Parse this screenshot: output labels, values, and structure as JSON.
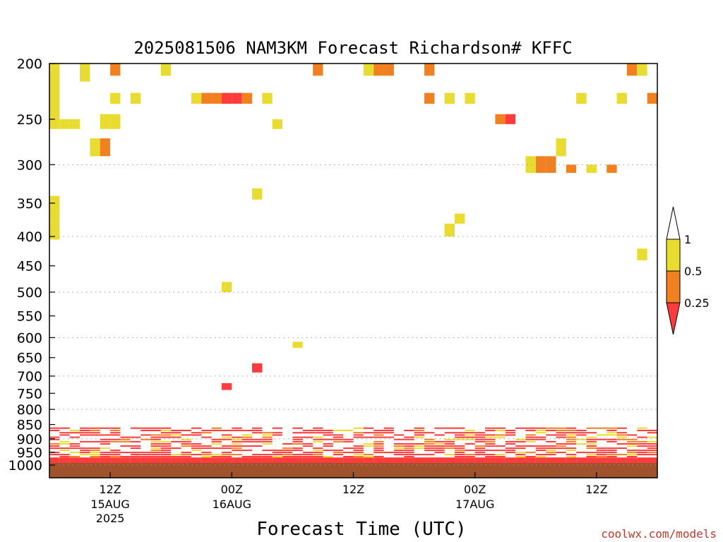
{
  "chart_data": {
    "type": "heatmap",
    "title": "2025081506 NAM3KM Forecast Richardson# KFFC",
    "xlabel": "Forecast Time (UTC)",
    "ylabel": "",
    "credit": "coolwx.com/models",
    "x_range_hours_since_2025081506": [
      0,
      60
    ],
    "y_axis": {
      "scale": "log-pressure",
      "range_hPa": [
        1000,
        200
      ],
      "reversed": true,
      "ticks": [
        200,
        250,
        300,
        350,
        400,
        450,
        500,
        550,
        600,
        650,
        700,
        750,
        800,
        850,
        900,
        950,
        1000
      ],
      "dotted_grid": [
        300,
        400,
        500,
        600,
        700,
        800,
        900,
        1000
      ]
    },
    "x_ticks": [
      {
        "label": "12Z",
        "date": "15AUG",
        "year": "2025"
      },
      {
        "label": "00Z",
        "date": "16AUG",
        "year": ""
      },
      {
        "label": "12Z",
        "date": "",
        "year": ""
      },
      {
        "label": "00Z",
        "date": "17AUG",
        "year": ""
      },
      {
        "label": "12Z",
        "date": "",
        "year": ""
      }
    ],
    "ground_color": "#a0522d",
    "legend": {
      "levels": [
        "1",
        "0.5",
        "0.25"
      ],
      "colors": {
        "low": "#ff3b3b",
        "mid": "#f08020",
        "high": "#e8dc30"
      },
      "placement": "right"
    },
    "cells": [
      [
        "2025-08-15T06",
        200,
        260,
        "high"
      ],
      [
        "2025-08-15T07",
        250,
        260,
        "high"
      ],
      [
        "2025-08-15T08",
        250,
        260,
        "high"
      ],
      [
        "2025-08-15T06",
        340,
        380,
        "high"
      ],
      [
        "2025-08-15T06",
        380,
        405,
        "high"
      ],
      [
        "2025-08-15T09",
        200,
        215,
        "high"
      ],
      [
        "2025-08-15T10",
        270,
        290,
        "high"
      ],
      [
        "2025-08-15T11",
        270,
        290,
        "mid"
      ],
      [
        "2025-08-15T11",
        245,
        260,
        "high"
      ],
      [
        "2025-08-15T12",
        245,
        260,
        "high"
      ],
      [
        "2025-08-15T12",
        200,
        210,
        "mid"
      ],
      [
        "2025-08-15T12",
        225,
        235,
        "high"
      ],
      [
        "2025-08-15T14",
        225,
        235,
        "high"
      ],
      [
        "2025-08-15T17",
        200,
        210,
        "high"
      ],
      [
        "2025-08-15T20",
        225,
        235,
        "high"
      ],
      [
        "2025-08-15T21",
        225,
        235,
        "mid"
      ],
      [
        "2025-08-15T22",
        225,
        235,
        "mid"
      ],
      [
        "2025-08-15T23",
        225,
        235,
        "low"
      ],
      [
        "2025-08-16T00",
        225,
        235,
        "low"
      ],
      [
        "2025-08-16T01",
        225,
        235,
        "mid"
      ],
      [
        "2025-08-16T03",
        225,
        235,
        "high"
      ],
      [
        "2025-08-16T04",
        250,
        260,
        "high"
      ],
      [
        "2025-08-16T02",
        330,
        345,
        "high"
      ],
      [
        "2025-08-15T23",
        480,
        500,
        "high"
      ],
      [
        "2025-08-16T08",
        200,
        210,
        "mid"
      ],
      [
        "2025-08-16T13",
        200,
        210,
        "high"
      ],
      [
        "2025-08-16T14",
        200,
        210,
        "mid"
      ],
      [
        "2025-08-16T15",
        200,
        210,
        "mid"
      ],
      [
        "2025-08-16T19",
        200,
        210,
        "mid"
      ],
      [
        "2025-08-16T19",
        225,
        235,
        "mid"
      ],
      [
        "2025-08-16T21",
        225,
        235,
        "high"
      ],
      [
        "2025-08-16T22",
        365,
        380,
        "high"
      ],
      [
        "2025-08-16T23",
        225,
        235,
        "high"
      ],
      [
        "2025-08-17T02",
        245,
        255,
        "mid"
      ],
      [
        "2025-08-17T03",
        245,
        255,
        "low"
      ],
      [
        "2025-08-17T05",
        290,
        310,
        "high"
      ],
      [
        "2025-08-17T06",
        290,
        310,
        "mid"
      ],
      [
        "2025-08-17T07",
        290,
        310,
        "mid"
      ],
      [
        "2025-08-17T08",
        270,
        290,
        "high"
      ],
      [
        "2025-08-17T09",
        300,
        310,
        "mid"
      ],
      [
        "2025-08-17T10",
        225,
        235,
        "high"
      ],
      [
        "2025-08-17T11",
        300,
        310,
        "high"
      ],
      [
        "2025-08-17T13",
        300,
        310,
        "mid"
      ],
      [
        "2025-08-17T14",
        225,
        235,
        "high"
      ],
      [
        "2025-08-17T15",
        200,
        210,
        "mid"
      ],
      [
        "2025-08-17T16",
        200,
        210,
        "high"
      ],
      [
        "2025-08-17T17",
        225,
        235,
        "mid"
      ],
      [
        "2025-08-17T16",
        420,
        440,
        "high"
      ],
      [
        "2025-08-16T21",
        380,
        400,
        "high"
      ],
      [
        "2025-08-16T06",
        610,
        625,
        "high"
      ],
      [
        "2025-08-16T02",
        665,
        690,
        "low"
      ],
      [
        "2025-08-15T23",
        720,
        740,
        "low"
      ]
    ]
  }
}
